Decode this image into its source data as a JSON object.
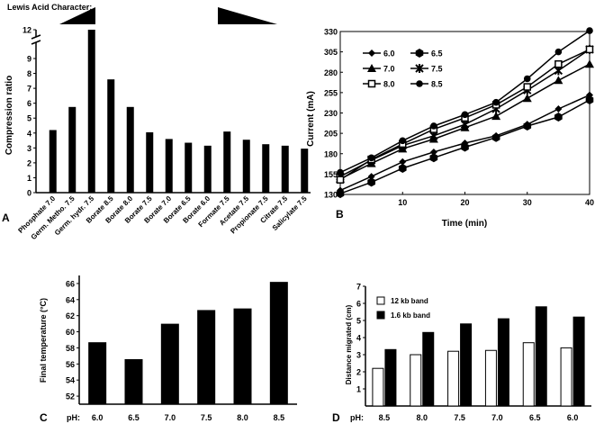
{
  "chart_data": [
    {
      "id": "A",
      "type": "bar",
      "panel_label": "A",
      "title": "",
      "header_label": "Lewis Acid Character:",
      "xlabel": "",
      "ylabel": "Compression ratio",
      "ylim": [
        0,
        12
      ],
      "y_ticks": [
        "0",
        "1",
        "2",
        "3",
        "4",
        "5",
        "6",
        "7",
        "8",
        "9",
        "12"
      ],
      "axis_break": true,
      "categories": [
        "Phosphate 7.0",
        "Germ. Metho. 7.5",
        "Germ. hydr. 7.5",
        "Borate 8.5",
        "Borate 8.0",
        "Borate 7.5",
        "Borate 7.0",
        "Borate 6.5",
        "Borate 6.0",
        "Formate 7.5",
        "Acetate 7.5",
        "Propionate 7.5",
        "Citrate 7.5",
        "Salicylate 7.5"
      ],
      "values": [
        4.2,
        5.75,
        12,
        7.6,
        5.75,
        4.05,
        3.6,
        3.35,
        3.15,
        4.1,
        3.55,
        3.25,
        3.15,
        2.95
      ]
    },
    {
      "id": "B",
      "type": "line",
      "panel_label": "B",
      "xlabel": "Time (min)",
      "ylabel": "Current (mA)",
      "xlim": [
        0,
        40
      ],
      "ylim": [
        130,
        330
      ],
      "x_ticks": [
        "10",
        "20",
        "30",
        "40"
      ],
      "y_ticks": [
        "130",
        "155",
        "180",
        "205",
        "230",
        "255",
        "280",
        "305",
        "330"
      ],
      "x": [
        0,
        5,
        10,
        15,
        20,
        25,
        30,
        35,
        40
      ],
      "series": [
        {
          "name": "6.0",
          "marker": "diamond",
          "values": [
            135,
            152,
            170,
            182,
            193,
            202,
            216,
            235,
            252
          ]
        },
        {
          "name": "6.5",
          "marker": "hexagon",
          "values": [
            131,
            145,
            162,
            175,
            188,
            200,
            214,
            225,
            246
          ]
        },
        {
          "name": "7.0",
          "marker": "triangle",
          "values": [
            149,
            168,
            186,
            198,
            212,
            226,
            248,
            270,
            290
          ]
        },
        {
          "name": "7.5",
          "marker": "star",
          "values": [
            152,
            172,
            190,
            202,
            216,
            235,
            258,
            282,
            308
          ]
        },
        {
          "name": "8.0",
          "marker": "square-open",
          "values": [
            148,
            173,
            192,
            210,
            224,
            240,
            262,
            290,
            308
          ]
        },
        {
          "name": "8.5",
          "marker": "circle",
          "values": [
            157,
            175,
            196,
            214,
            228,
            243,
            272,
            305,
            331
          ]
        }
      ]
    },
    {
      "id": "C",
      "type": "bar",
      "panel_label": "C",
      "xlabel": "pH:",
      "ylabel": "Final temperature (°C)",
      "ylim": [
        51,
        67
      ],
      "y_ticks": [
        "52",
        "54",
        "56",
        "58",
        "60",
        "62",
        "64",
        "66"
      ],
      "categories": [
        "6.0",
        "6.5",
        "7.0",
        "7.5",
        "8.0",
        "8.5"
      ],
      "values": [
        58.7,
        56.6,
        61.0,
        62.7,
        62.9,
        66.2
      ]
    },
    {
      "id": "D",
      "type": "bar",
      "panel_label": "D",
      "xlabel": "pH:",
      "ylabel": "Distance migrated (cm)",
      "ylim": [
        0,
        7
      ],
      "y_ticks": [
        "1",
        "2",
        "3",
        "4",
        "5",
        "6",
        "7"
      ],
      "categories": [
        "8.5",
        "8.0",
        "7.5",
        "7.0",
        "6.5",
        "6.0"
      ],
      "series": [
        {
          "name": "12 kb band",
          "color": "#ffffff",
          "values": [
            2.2,
            3.0,
            3.2,
            3.25,
            3.7,
            3.4
          ]
        },
        {
          "name": "1.6 kb band",
          "color": "#000000",
          "values": [
            3.3,
            4.3,
            4.8,
            5.1,
            5.8,
            5.2
          ]
        }
      ]
    }
  ]
}
